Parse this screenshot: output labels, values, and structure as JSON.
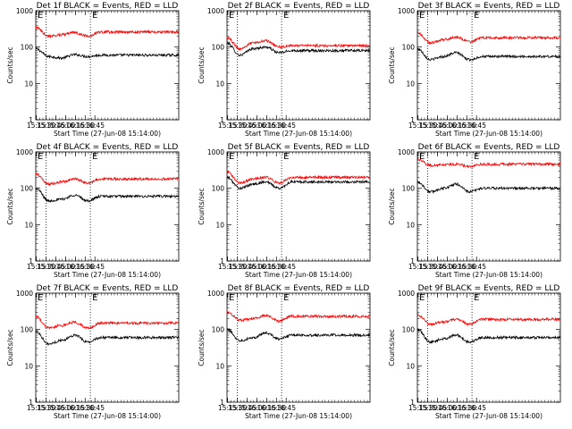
{
  "chart_data": [
    {
      "type": "line",
      "title": "Det 1f BLACK = Events, RED = LLD",
      "xlabel": "Start Time (27-Jun-08 15:14:00)",
      "ylabel": "Counts/sec",
      "xlim": [
        "15:14",
        "18:54"
      ],
      "ylim": [
        1,
        1000
      ],
      "yscale": "log",
      "x_ticks": [
        "15:15",
        "15:30",
        "15:45",
        "16:00",
        "16:15",
        "16:30",
        "16:45"
      ],
      "y_ticks": [
        "1",
        "10",
        "100",
        "1000"
      ],
      "markers": [
        "15:30",
        "16:38"
      ],
      "marker_labels": [
        "E",
        "E"
      ],
      "x": [
        "15:14",
        "15:34",
        "15:54",
        "16:14",
        "16:34",
        "16:54"
      ],
      "series": [
        {
          "color": "#000000",
          "values": [
            90,
            55,
            50,
            62,
            55,
            60
          ]
        },
        {
          "color": "#ff0000",
          "values": [
            350,
            200,
            220,
            250,
            200,
            260
          ]
        }
      ]
    },
    {
      "type": "line",
      "title": "Det 2f BLACK = Events, RED = LLD",
      "xlabel": "Start Time (27-Jun-08 15:14:00)",
      "ylabel": "Counts/sec",
      "xlim": [
        "15:14",
        "18:54"
      ],
      "ylim": [
        1,
        1000
      ],
      "yscale": "log",
      "x_ticks": [
        "15:15",
        "15:30",
        "15:45",
        "16:00",
        "16:15",
        "16:30",
        "16:45"
      ],
      "y_ticks": [
        "1",
        "10",
        "100",
        "1000"
      ],
      "markers": [
        "15:30",
        "16:38"
      ],
      "marker_labels": [
        "E",
        "E"
      ],
      "x": [
        "15:14",
        "15:34",
        "15:54",
        "16:14",
        "16:34",
        "16:54"
      ],
      "series": [
        {
          "color": "#000000",
          "values": [
            130,
            60,
            90,
            100,
            70,
            80
          ]
        },
        {
          "color": "#ff0000",
          "values": [
            180,
            90,
            130,
            150,
            100,
            110
          ]
        }
      ]
    },
    {
      "type": "line",
      "title": "Det 3f BLACK = Events, RED = LLD",
      "xlabel": "Start Time (27-Jun-08 15:14:00)",
      "ylabel": "Counts/sec",
      "xlim": [
        "15:14",
        "18:54"
      ],
      "ylim": [
        1,
        1000
      ],
      "yscale": "log",
      "x_ticks": [
        "15:15",
        "15:30",
        "15:45",
        "16:00",
        "16:15",
        "16:30",
        "16:45"
      ],
      "y_ticks": [
        "1",
        "10",
        "100",
        "1000"
      ],
      "markers": [
        "15:30",
        "16:38"
      ],
      "marker_labels": [
        "E",
        "E"
      ],
      "x": [
        "15:14",
        "15:34",
        "15:54",
        "16:14",
        "16:34",
        "16:54"
      ],
      "series": [
        {
          "color": "#000000",
          "values": [
            90,
            45,
            55,
            70,
            45,
            55
          ]
        },
        {
          "color": "#ff0000",
          "values": [
            250,
            130,
            160,
            190,
            140,
            180
          ]
        }
      ]
    },
    {
      "type": "line",
      "title": "Det 4f BLACK = Events, RED = LLD",
      "xlabel": "Start Time (27-Jun-08 15:14:00)",
      "ylabel": "Counts/sec",
      "xlim": [
        "15:14",
        "18:54"
      ],
      "ylim": [
        1,
        1000
      ],
      "yscale": "log",
      "x_ticks": [
        "15:15",
        "15:30",
        "15:45",
        "16:00",
        "16:15",
        "16:30",
        "16:45"
      ],
      "y_ticks": [
        "1",
        "10",
        "100",
        "1000"
      ],
      "markers": [
        "15:30",
        "16:38"
      ],
      "marker_labels": [
        "E",
        "E"
      ],
      "x": [
        "15:14",
        "15:34",
        "15:54",
        "16:14",
        "16:34",
        "16:54"
      ],
      "series": [
        {
          "color": "#000000",
          "values": [
            100,
            45,
            50,
            65,
            45,
            60
          ]
        },
        {
          "color": "#ff0000",
          "values": [
            250,
            130,
            150,
            180,
            140,
            180
          ]
        }
      ]
    },
    {
      "type": "line",
      "title": "Det 5f BLACK = Events, RED = LLD",
      "xlabel": "Start Time (27-Jun-08 15:14:00)",
      "ylabel": "Counts/sec",
      "xlim": [
        "15:14",
        "18:54"
      ],
      "ylim": [
        1,
        1000
      ],
      "yscale": "log",
      "x_ticks": [
        "15:15",
        "15:30",
        "15:45",
        "16:00",
        "16:15",
        "16:30",
        "16:45"
      ],
      "y_ticks": [
        "1",
        "10",
        "100",
        "1000"
      ],
      "markers": [
        "15:30",
        "16:38"
      ],
      "marker_labels": [
        "E",
        "E"
      ],
      "x": [
        "15:14",
        "15:34",
        "15:54",
        "16:14",
        "16:34",
        "16:54"
      ],
      "series": [
        {
          "color": "#000000",
          "values": [
            200,
            100,
            130,
            150,
            100,
            150
          ]
        },
        {
          "color": "#ff0000",
          "values": [
            280,
            140,
            180,
            200,
            140,
            200
          ]
        }
      ]
    },
    {
      "type": "line",
      "title": "Det 6f BLACK = Events, RED = LLD",
      "xlabel": "Start Time (27-Jun-08 15:14:00)",
      "ylabel": "Counts/sec",
      "xlim": [
        "15:14",
        "18:54"
      ],
      "ylim": [
        1,
        1000
      ],
      "yscale": "log",
      "x_ticks": [
        "15:15",
        "15:30",
        "15:45",
        "16:00",
        "16:15",
        "16:30",
        "16:45"
      ],
      "y_ticks": [
        "1",
        "10",
        "100",
        "1000"
      ],
      "markers": [
        "15:30",
        "16:38"
      ],
      "marker_labels": [
        "E",
        "E"
      ],
      "x": [
        "15:14",
        "15:34",
        "15:54",
        "16:14",
        "16:34",
        "16:54"
      ],
      "series": [
        {
          "color": "#000000",
          "values": [
            150,
            80,
            100,
            130,
            80,
            100
          ]
        },
        {
          "color": "#ff0000",
          "values": [
            620,
            430,
            440,
            460,
            400,
            460
          ]
        }
      ]
    },
    {
      "type": "line",
      "title": "Det 7f BLACK = Events, RED = LLD",
      "xlabel": "Start Time (27-Jun-08 15:14:00)",
      "ylabel": "Counts/sec",
      "xlim": [
        "15:14",
        "18:54"
      ],
      "ylim": [
        1,
        1000
      ],
      "yscale": "log",
      "x_ticks": [
        "15:15",
        "15:30",
        "15:45",
        "16:00",
        "16:15",
        "16:30",
        "16:45"
      ],
      "y_ticks": [
        "1",
        "10",
        "100",
        "1000"
      ],
      "markers": [
        "15:30",
        "16:38"
      ],
      "marker_labels": [
        "E",
        "E"
      ],
      "x": [
        "15:14",
        "15:34",
        "15:54",
        "16:14",
        "16:34",
        "16:54"
      ],
      "series": [
        {
          "color": "#000000",
          "values": [
            90,
            40,
            50,
            70,
            45,
            60
          ]
        },
        {
          "color": "#ff0000",
          "values": [
            230,
            110,
            130,
            160,
            110,
            150
          ]
        }
      ]
    },
    {
      "type": "line",
      "title": "Det 8f BLACK = Events, RED = LLD",
      "xlabel": "Start Time (27-Jun-08 15:14:00)",
      "ylabel": "Counts/sec",
      "xlim": [
        "15:14",
        "18:54"
      ],
      "ylim": [
        1,
        1000
      ],
      "yscale": "log",
      "x_ticks": [
        "15:15",
        "15:30",
        "15:45",
        "16:00",
        "16:15",
        "16:30",
        "16:45"
      ],
      "y_ticks": [
        "1",
        "10",
        "100",
        "1000"
      ],
      "markers": [
        "15:30",
        "16:38"
      ],
      "marker_labels": [
        "E",
        "E"
      ],
      "x": [
        "15:14",
        "15:34",
        "15:54",
        "16:14",
        "16:34",
        "16:54"
      ],
      "series": [
        {
          "color": "#000000",
          "values": [
            100,
            50,
            60,
            80,
            55,
            70
          ]
        },
        {
          "color": "#ff0000",
          "values": [
            300,
            180,
            200,
            240,
            170,
            230
          ]
        }
      ]
    },
    {
      "type": "line",
      "title": "Det 9f BLACK = Events, RED = LLD",
      "xlabel": "Start Time (27-Jun-08 15:14:00)",
      "ylabel": "Counts/sec",
      "xlim": [
        "15:14",
        "18:54"
      ],
      "ylim": [
        1,
        1000
      ],
      "yscale": "log",
      "x_ticks": [
        "15:15",
        "15:30",
        "15:45",
        "16:00",
        "16:15",
        "16:30",
        "16:45"
      ],
      "y_ticks": [
        "1",
        "10",
        "100",
        "1000"
      ],
      "markers": [
        "15:30",
        "16:38"
      ],
      "marker_labels": [
        "E",
        "E"
      ],
      "x": [
        "15:14",
        "15:34",
        "15:54",
        "16:14",
        "16:34",
        "16:54"
      ],
      "series": [
        {
          "color": "#000000",
          "values": [
            100,
            45,
            55,
            70,
            45,
            60
          ]
        },
        {
          "color": "#ff0000",
          "values": [
            250,
            140,
            160,
            190,
            140,
            190
          ]
        }
      ]
    }
  ]
}
